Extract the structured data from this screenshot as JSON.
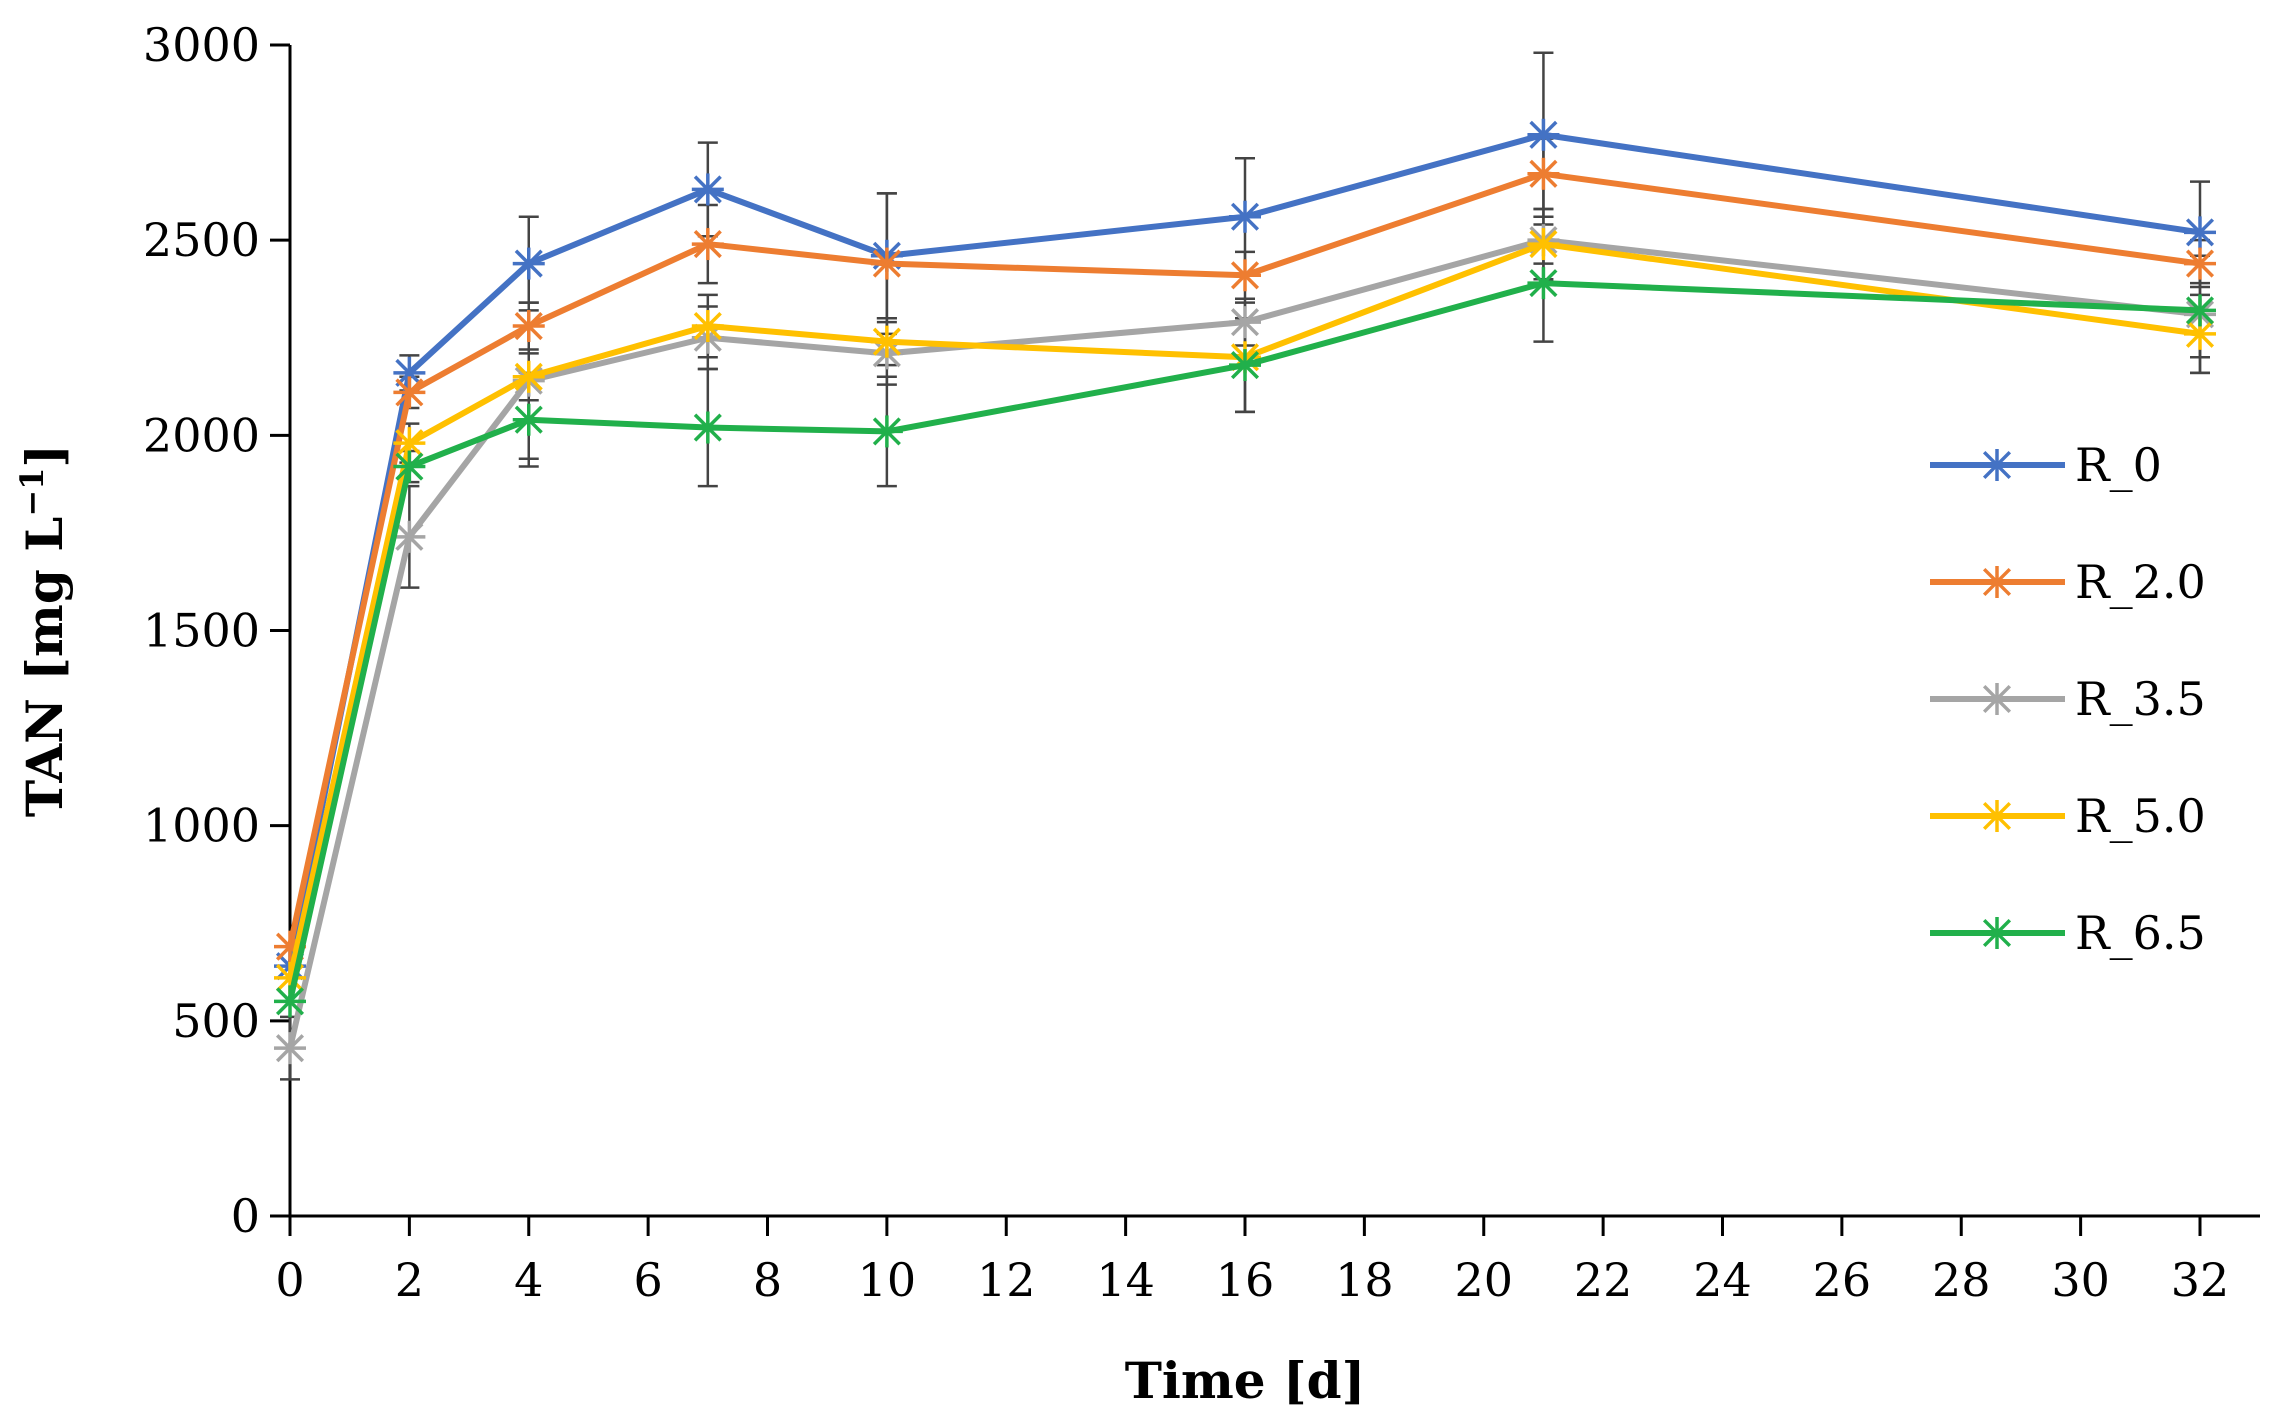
{
  "chart_data": {
    "type": "line",
    "title": "",
    "xlabel": "Time [d]",
    "ylabel_main": "TAN [mg L",
    "ylabel_sup": "−1",
    "ylabel_close": "]",
    "xlim": [
      0,
      32
    ],
    "ylim": [
      0,
      3000
    ],
    "xticks": [
      "0",
      "2",
      "4",
      "6",
      "8",
      "10",
      "12",
      "14",
      "16",
      "18",
      "20",
      "22",
      "24",
      "26",
      "28",
      "30",
      "32"
    ],
    "yticks": [
      "0",
      "500",
      "1000",
      "1500",
      "2000",
      "2500",
      "3000"
    ],
    "grid": false,
    "legend_position": "right",
    "x": [
      0,
      2,
      4,
      7,
      10,
      16,
      21,
      32
    ],
    "series": [
      {
        "name": "R_0",
        "color": "#4472C4",
        "values": [
          640,
          2160,
          2440,
          2630,
          2460,
          2560,
          2770,
          2520
        ],
        "errors": [
          0,
          45,
          120,
          120,
          160,
          150,
          210,
          130
        ]
      },
      {
        "name": "R_2.0",
        "color": "#ED7D31",
        "values": [
          690,
          2110,
          2280,
          2490,
          2440,
          2410,
          2670,
          2440
        ],
        "errors": [
          0,
          40,
          60,
          100,
          180,
          60,
          90,
          60
        ]
      },
      {
        "name": "R_3.5",
        "color": "#A5A5A5",
        "values": [
          430,
          1740,
          2140,
          2250,
          2210,
          2290,
          2500,
          2310
        ],
        "errors": [
          80,
          130,
          200,
          80,
          80,
          60,
          60,
          150
        ]
      },
      {
        "name": "R_5.0",
        "color": "#FFC000",
        "values": [
          610,
          1980,
          2150,
          2280,
          2240,
          2200,
          2490,
          2260
        ],
        "errors": [
          0,
          50,
          60,
          80,
          60,
          140,
          90,
          100
        ]
      },
      {
        "name": "R_6.5",
        "color": "#21B04B",
        "values": [
          550,
          1920,
          2040,
          2020,
          2010,
          2180,
          2390,
          2320
        ],
        "errors": [
          0,
          40,
          120,
          150,
          140,
          120,
          150,
          120
        ]
      }
    ]
  }
}
